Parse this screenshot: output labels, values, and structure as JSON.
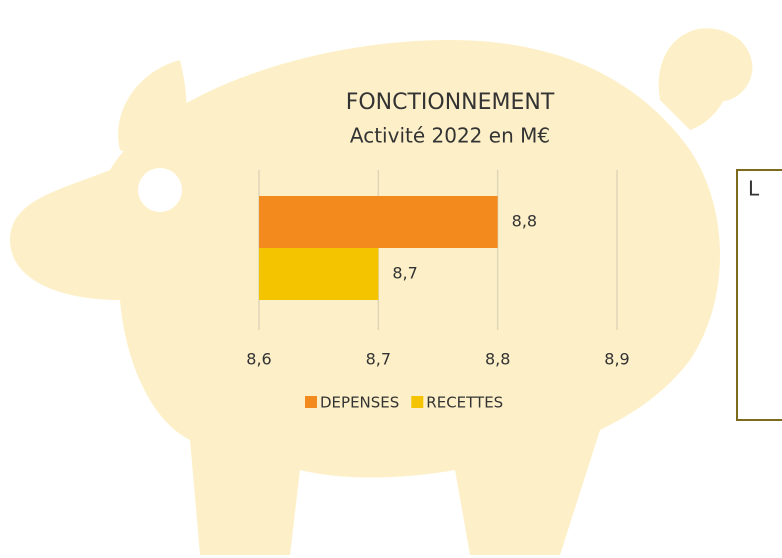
{
  "chart_data": {
    "type": "hbar",
    "title": "FONCTIONNEMENT",
    "subtitle": "Activité 2022 en M€",
    "categories": [
      null
    ],
    "series": [
      {
        "name": "DEPENSES",
        "color": "#f28a1d",
        "values": [
          8.8
        ],
        "value_labels": [
          "8,8"
        ]
      },
      {
        "name": "RECETTES",
        "color": "#f5c400",
        "values": [
          8.7
        ],
        "value_labels": [
          "8,7"
        ]
      }
    ],
    "xlim": [
      8.6,
      8.9
    ],
    "xticks": [
      {
        "value": 8.6,
        "label": "8,6"
      },
      {
        "value": 8.7,
        "label": "8,7"
      },
      {
        "value": 8.8,
        "label": "8,8"
      },
      {
        "value": 8.9,
        "label": "8,9"
      }
    ],
    "grid": true,
    "legend": "bottom"
  },
  "side_box": {
    "text": "L"
  }
}
